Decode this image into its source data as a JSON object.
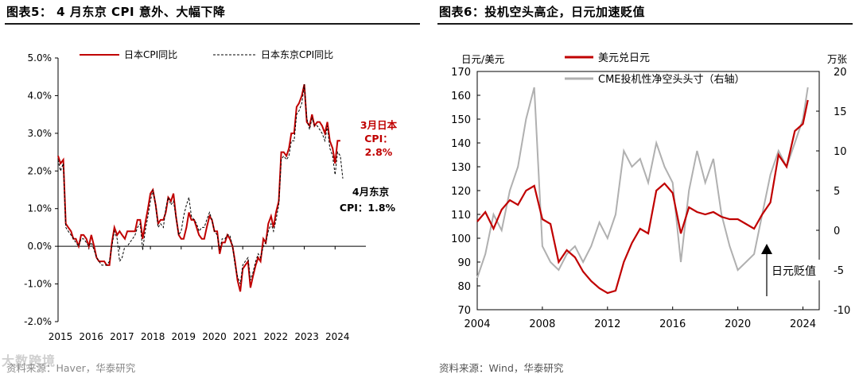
{
  "left": {
    "title": "图表5： 4 月东京 CPI 意外、大幅下降",
    "source": "资料来源：Haver，华泰研究",
    "legend": [
      "日本CPI同比",
      "日本东京CPI同比"
    ],
    "annotations": [
      {
        "lines": [
          "3月日本",
          "CPI：",
          "2.8%"
        ],
        "color": "#c00000"
      },
      {
        "lines": [
          "4月东京",
          "CPI：1.8%"
        ],
        "color": "#000000"
      }
    ]
  },
  "right": {
    "title": "图表6：投机空头高企，日元加速贬值",
    "source": "资料来源：Wind，华泰研究",
    "left_axis_unit": "日元/美元",
    "right_axis_unit": "万张",
    "legend": [
      "美元兑日元",
      "CME投机性净空头头寸（右轴）"
    ],
    "annotation": "日元贬值"
  },
  "watermark": "大数跨境",
  "chart_data": [
    {
      "type": "line",
      "title": "4 月东京 CPI 意外、大幅下降",
      "xlabel": "",
      "ylabel": "",
      "x_ticks": [
        "2015",
        "2016",
        "2017",
        "2018",
        "2019",
        "2020",
        "2021",
        "2022",
        "2023",
        "2024"
      ],
      "y_ticks": [
        "5.0%",
        "4.0%",
        "3.0%",
        "2.0%",
        "1.0%",
        "0.0%",
        "-1.0%",
        "-2.0%"
      ],
      "ylim": [
        -2.0,
        5.0
      ],
      "xlim": [
        2015.0,
        2025.0
      ],
      "series": [
        {
          "name": "日本CPI同比",
          "color": "#c00000",
          "style": "solid",
          "x": [
            2015.0,
            2015.08,
            2015.17,
            2015.25,
            2015.33,
            2015.42,
            2015.5,
            2015.58,
            2015.67,
            2015.75,
            2015.83,
            2015.92,
            2016.0,
            2016.08,
            2016.17,
            2016.25,
            2016.33,
            2016.42,
            2016.5,
            2016.58,
            2016.67,
            2016.75,
            2016.83,
            2016.92,
            2017.0,
            2017.08,
            2017.17,
            2017.25,
            2017.33,
            2017.42,
            2017.5,
            2017.58,
            2017.67,
            2017.75,
            2017.83,
            2017.92,
            2018.0,
            2018.08,
            2018.17,
            2018.25,
            2018.33,
            2018.42,
            2018.5,
            2018.58,
            2018.67,
            2018.75,
            2018.83,
            2018.92,
            2019.0,
            2019.08,
            2019.17,
            2019.25,
            2019.33,
            2019.42,
            2019.5,
            2019.58,
            2019.67,
            2019.75,
            2019.83,
            2019.92,
            2020.0,
            2020.08,
            2020.17,
            2020.25,
            2020.33,
            2020.42,
            2020.5,
            2020.58,
            2020.67,
            2020.75,
            2020.83,
            2020.92,
            2021.0,
            2021.08,
            2021.17,
            2021.25,
            2021.33,
            2021.42,
            2021.5,
            2021.58,
            2021.67,
            2021.75,
            2021.83,
            2021.92,
            2022.0,
            2022.08,
            2022.17,
            2022.25,
            2022.33,
            2022.42,
            2022.5,
            2022.58,
            2022.67,
            2022.75,
            2022.83,
            2022.92,
            2023.0,
            2023.08,
            2023.17,
            2023.25,
            2023.33,
            2023.42,
            2023.5,
            2023.58,
            2023.67,
            2023.75,
            2023.83,
            2023.92,
            2024.0,
            2024.08,
            2024.17
          ],
          "values": [
            2.4,
            2.2,
            2.3,
            0.6,
            0.5,
            0.4,
            0.2,
            0.2,
            0.0,
            0.3,
            0.3,
            0.2,
            0.0,
            0.3,
            0.0,
            -0.3,
            -0.4,
            -0.4,
            -0.4,
            -0.5,
            -0.5,
            0.1,
            0.5,
            0.3,
            0.4,
            0.3,
            0.2,
            0.4,
            0.4,
            0.4,
            0.4,
            0.7,
            0.7,
            0.2,
            0.6,
            1.0,
            1.4,
            1.5,
            1.1,
            0.6,
            0.7,
            0.7,
            0.9,
            1.3,
            1.2,
            1.4,
            0.8,
            0.3,
            0.2,
            0.2,
            0.5,
            0.9,
            0.7,
            0.7,
            0.5,
            0.3,
            0.2,
            0.2,
            0.5,
            0.8,
            0.7,
            0.4,
            0.4,
            -0.2,
            0.1,
            0.1,
            0.3,
            0.2,
            0.0,
            -0.4,
            -0.9,
            -1.2,
            -0.6,
            -0.5,
            -0.4,
            -1.1,
            -0.8,
            -0.5,
            -0.3,
            -0.4,
            0.2,
            0.1,
            0.6,
            0.8,
            0.5,
            0.9,
            1.2,
            2.5,
            2.5,
            2.4,
            2.6,
            3.0,
            3.0,
            3.7,
            3.8,
            4.0,
            4.3,
            3.3,
            3.2,
            3.5,
            3.2,
            3.3,
            3.3,
            3.2,
            3.0,
            3.3,
            2.8,
            2.6,
            2.2,
            2.8,
            2.8
          ]
        },
        {
          "name": "日本东京CPI同比",
          "color": "#000000",
          "style": "dashed",
          "x": [
            2015.0,
            2015.08,
            2015.17,
            2015.25,
            2015.33,
            2015.42,
            2015.5,
            2015.58,
            2015.67,
            2015.75,
            2015.83,
            2015.92,
            2016.0,
            2016.08,
            2016.17,
            2016.25,
            2016.33,
            2016.42,
            2016.5,
            2016.58,
            2016.67,
            2016.75,
            2016.83,
            2016.92,
            2017.0,
            2017.08,
            2017.17,
            2017.25,
            2017.33,
            2017.42,
            2017.5,
            2017.58,
            2017.67,
            2017.75,
            2017.83,
            2017.92,
            2018.0,
            2018.08,
            2018.17,
            2018.25,
            2018.33,
            2018.42,
            2018.5,
            2018.58,
            2018.67,
            2018.75,
            2018.83,
            2018.92,
            2019.0,
            2019.08,
            2019.17,
            2019.25,
            2019.33,
            2019.42,
            2019.5,
            2019.58,
            2019.67,
            2019.75,
            2019.83,
            2019.92,
            2020.0,
            2020.08,
            2020.17,
            2020.25,
            2020.33,
            2020.42,
            2020.5,
            2020.58,
            2020.67,
            2020.75,
            2020.83,
            2020.92,
            2021.0,
            2021.08,
            2021.17,
            2021.25,
            2021.33,
            2021.42,
            2021.5,
            2021.58,
            2021.67,
            2021.75,
            2021.83,
            2021.92,
            2022.0,
            2022.08,
            2022.17,
            2022.25,
            2022.33,
            2022.42,
            2022.5,
            2022.58,
            2022.67,
            2022.75,
            2022.83,
            2022.92,
            2023.0,
            2023.08,
            2023.17,
            2023.25,
            2023.33,
            2023.42,
            2023.5,
            2023.58,
            2023.67,
            2023.75,
            2023.83,
            2023.92,
            2024.0,
            2024.08,
            2024.17,
            2024.25
          ],
          "values": [
            2.3,
            2.0,
            2.2,
            0.5,
            0.4,
            0.3,
            0.2,
            0.1,
            0.0,
            0.2,
            0.2,
            0.1,
            0.0,
            0.1,
            -0.1,
            -0.3,
            -0.4,
            -0.5,
            -0.5,
            -0.5,
            -0.4,
            0.0,
            0.4,
            0.2,
            -0.4,
            -0.3,
            0.0,
            0.0,
            0.1,
            0.2,
            0.3,
            0.5,
            0.6,
            -0.1,
            0.4,
            0.8,
            1.2,
            1.5,
            1.1,
            0.5,
            0.6,
            0.5,
            1.0,
            1.3,
            1.1,
            1.2,
            0.8,
            0.3,
            0.4,
            0.8,
            1.1,
            1.3,
            0.8,
            0.7,
            0.6,
            0.4,
            0.5,
            0.5,
            0.7,
            0.9,
            0.7,
            0.4,
            0.3,
            -0.1,
            0.2,
            0.2,
            0.3,
            0.3,
            0.0,
            -0.5,
            -0.8,
            -1.0,
            -0.5,
            -0.4,
            -0.3,
            -0.9,
            -0.7,
            -0.4,
            -0.2,
            -0.3,
            0.0,
            0.1,
            0.4,
            0.6,
            0.4,
            0.7,
            1.1,
            2.3,
            2.4,
            2.3,
            2.4,
            2.8,
            2.8,
            3.5,
            3.6,
            3.8,
            4.3,
            3.4,
            3.1,
            3.4,
            3.2,
            3.2,
            3.1,
            3.0,
            2.8,
            3.2,
            2.6,
            2.4,
            1.9,
            2.5,
            2.4,
            1.8
          ]
        }
      ]
    },
    {
      "type": "line",
      "title": "投机空头高企，日元加速贬值",
      "xlabel": "",
      "ylabel": "日元/美元",
      "y2label": "万张",
      "x_ticks": [
        "2004",
        "2008",
        "2012",
        "2016",
        "2020",
        "2024"
      ],
      "y_ticks": [
        "170",
        "160",
        "150",
        "140",
        "130",
        "120",
        "110",
        "100",
        "90",
        "80",
        "70"
      ],
      "y2_ticks": [
        "20",
        "15",
        "10",
        "5",
        "0",
        "-5",
        "-10"
      ],
      "ylim": [
        70,
        170
      ],
      "y2lim": [
        -10,
        20
      ],
      "xlim": [
        2004.0,
        2025.0
      ],
      "series": [
        {
          "name": "美元兑日元",
          "axis": "left",
          "color": "#c00000",
          "x": [
            2004.0,
            2004.5,
            2005.0,
            2005.5,
            2006.0,
            2006.5,
            2007.0,
            2007.5,
            2008.0,
            2008.5,
            2009.0,
            2009.5,
            2010.0,
            2010.5,
            2011.0,
            2011.5,
            2012.0,
            2012.5,
            2013.0,
            2013.5,
            2014.0,
            2014.5,
            2015.0,
            2015.5,
            2016.0,
            2016.5,
            2017.0,
            2017.5,
            2018.0,
            2018.5,
            2019.0,
            2019.5,
            2020.0,
            2020.5,
            2021.0,
            2021.5,
            2022.0,
            2022.5,
            2023.0,
            2023.5,
            2024.0,
            2024.3
          ],
          "values": [
            107,
            111,
            104,
            112,
            116,
            114,
            120,
            122,
            108,
            106,
            90,
            95,
            92,
            86,
            82,
            79,
            77,
            78,
            90,
            98,
            104,
            102,
            120,
            123,
            119,
            102,
            113,
            111,
            110,
            111,
            109,
            108,
            108,
            106,
            104,
            110,
            115,
            135,
            130,
            145,
            148,
            158
          ]
        },
        {
          "name": "CME投机性净空头头寸（右轴）",
          "axis": "right",
          "color": "#b0b0b0",
          "x": [
            2004.0,
            2004.5,
            2005.0,
            2005.5,
            2006.0,
            2006.5,
            2007.0,
            2007.5,
            2008.0,
            2008.5,
            2009.0,
            2009.5,
            2010.0,
            2010.5,
            2011.0,
            2011.5,
            2012.0,
            2012.5,
            2013.0,
            2013.5,
            2014.0,
            2014.5,
            2015.0,
            2015.5,
            2016.0,
            2016.5,
            2017.0,
            2017.5,
            2018.0,
            2018.5,
            2019.0,
            2019.5,
            2020.0,
            2020.5,
            2021.0,
            2021.5,
            2022.0,
            2022.5,
            2023.0,
            2023.5,
            2024.0,
            2024.3
          ],
          "values": [
            -6,
            -3,
            2,
            0,
            5,
            8,
            14,
            18,
            -2,
            -4,
            -5,
            -3,
            -2,
            -4,
            -2,
            1,
            -1,
            2,
            10,
            8,
            9,
            6,
            11,
            8,
            6,
            -4,
            5,
            10,
            6,
            9,
            2,
            -2,
            -5,
            -4,
            -3,
            2,
            7,
            10,
            8,
            11,
            14,
            18
          ]
        }
      ]
    }
  ]
}
